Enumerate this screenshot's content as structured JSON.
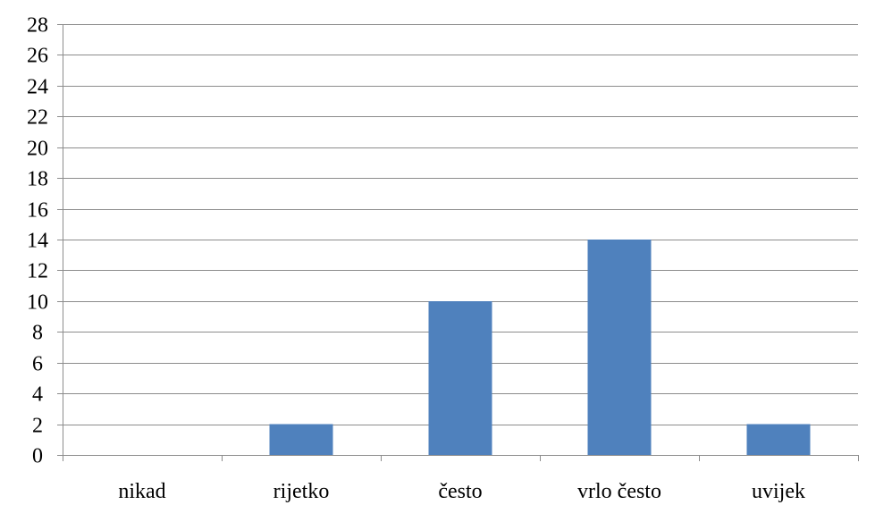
{
  "chart_data": {
    "type": "bar",
    "title": "",
    "xlabel": "",
    "ylabel": "",
    "categories": [
      "nikad",
      "rijetko",
      "često",
      "vrlo često",
      "uvijek"
    ],
    "values": [
      0,
      2,
      10,
      14,
      2
    ],
    "ylim": [
      0,
      28
    ],
    "ytick_step": 2,
    "grid": true,
    "legend": "none",
    "bar_color": "#4f81bd",
    "grid_color": "#8c8c8c"
  }
}
